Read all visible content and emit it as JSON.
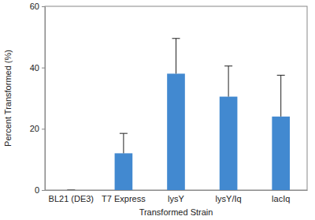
{
  "chart_data": {
    "type": "bar",
    "x_label": "Transformed Strain",
    "y_label": "Percent Transformed (%)",
    "categories": [
      "BL21 (DE3)",
      "T7 Express",
      "lysY",
      "lysY/Iq",
      "lacIq"
    ],
    "values": [
      0,
      12,
      38,
      30.5,
      24
    ],
    "errors": [
      0,
      6.5,
      11.5,
      10,
      13.5
    ],
    "color": "#4289d0",
    "ylim": [
      0,
      60
    ],
    "yticks": [
      0,
      20,
      40,
      60
    ],
    "grid": false
  }
}
